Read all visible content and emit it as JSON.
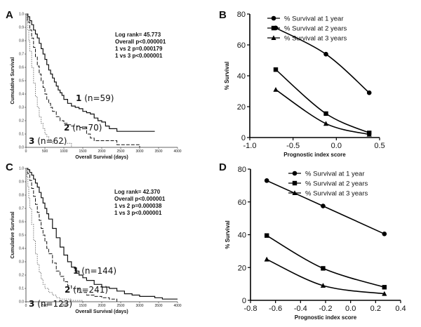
{
  "chart_data": [
    {
      "panel": "A",
      "type": "line",
      "xlabel": "Overall Survival (days)",
      "ylabel": "Cumulative Survival",
      "xlim": [
        0,
        4000
      ],
      "ylim": [
        0,
        1.0
      ],
      "xticks": [
        "0",
        "500",
        "1000",
        "1500",
        "2000",
        "2500",
        "3000",
        "3500",
        "4000"
      ],
      "yticks": [
        "0.0",
        "0.1",
        "0.2",
        "0.3",
        "0.4",
        "0.5",
        "0.6",
        "0.7",
        "0.8",
        "0.9",
        "1.0"
      ],
      "stats": [
        "Log rank= 45.773",
        "Overall p<0.000001",
        "1 vs 2 p=0.000179",
        "1 vs 3 p<0.000001"
      ],
      "group_labels": [
        {
          "num": "1",
          "n": "(n=59)"
        },
        {
          "num": "2",
          "n": "(n=70)"
        },
        {
          "num": "3",
          "n": "(n=62)"
        }
      ],
      "series": [
        {
          "x": [
            0,
            50,
            100,
            150,
            200,
            250,
            300,
            350,
            400,
            450,
            500,
            550,
            600,
            650,
            700,
            750,
            800,
            850,
            900,
            950,
            1000,
            1100,
            1200,
            1300,
            1400,
            1500,
            1600,
            1700,
            1800,
            1900,
            2000,
            2100,
            2200,
            2300,
            2400,
            2600,
            2800,
            3000,
            3200,
            3400
          ],
          "y": [
            1.0,
            0.98,
            0.95,
            0.92,
            0.88,
            0.85,
            0.82,
            0.78,
            0.74,
            0.7,
            0.66,
            0.62,
            0.58,
            0.55,
            0.52,
            0.49,
            0.46,
            0.43,
            0.41,
            0.39,
            0.36,
            0.33,
            0.31,
            0.3,
            0.29,
            0.27,
            0.26,
            0.25,
            0.22,
            0.2,
            0.19,
            0.16,
            0.14,
            0.14,
            0.12,
            0.12,
            0.12,
            0.12,
            0.12,
            0.12
          ]
        },
        {
          "x": [
            0,
            50,
            100,
            150,
            200,
            250,
            300,
            350,
            400,
            450,
            500,
            550,
            600,
            650,
            700,
            800,
            900,
            1000,
            1100,
            1200,
            1300,
            1400,
            1500,
            1600,
            1700,
            1800,
            2000,
            2200,
            2400,
            2600,
            2800,
            3000
          ],
          "y": [
            1.0,
            0.94,
            0.88,
            0.82,
            0.75,
            0.68,
            0.61,
            0.55,
            0.5,
            0.45,
            0.4,
            0.36,
            0.33,
            0.3,
            0.27,
            0.23,
            0.2,
            0.18,
            0.17,
            0.16,
            0.16,
            0.15,
            0.15,
            0.1,
            0.07,
            0.05,
            0.05,
            0.05,
            0.02,
            0.02,
            0.02,
            0.0
          ]
        },
        {
          "x": [
            0,
            25,
            50,
            75,
            100,
            150,
            200,
            250,
            300,
            350,
            400,
            450,
            500,
            550,
            600,
            650,
            700,
            800,
            900,
            1000,
            1200
          ],
          "y": [
            1.0,
            0.95,
            0.88,
            0.8,
            0.72,
            0.6,
            0.48,
            0.38,
            0.3,
            0.23,
            0.18,
            0.14,
            0.1,
            0.08,
            0.06,
            0.05,
            0.03,
            0.03,
            0.03,
            0.03,
            0.0
          ]
        }
      ]
    },
    {
      "panel": "B",
      "type": "line",
      "xlabel": "Prognostic index score",
      "ylabel": "% Survival",
      "xlim": [
        -1.0,
        0.5
      ],
      "ylim": [
        0,
        80
      ],
      "xticks": [
        "-1.0",
        "-0.5",
        "0.0",
        "0.5"
      ],
      "yticks": [
        "0",
        "20",
        "40",
        "60",
        "80"
      ],
      "legend_position": "top-right",
      "series": [
        {
          "name": "% Survival at 1 year",
          "marker": "circle",
          "x": [
            -0.7,
            -0.12,
            0.38
          ],
          "y": [
            71,
            54,
            29
          ]
        },
        {
          "name": "% Survival at 2 years",
          "marker": "square",
          "x": [
            -0.7,
            -0.12,
            0.38
          ],
          "y": [
            44,
            15.5,
            3
          ]
        },
        {
          "name": "% Survival at 3 years",
          "marker": "triangle",
          "x": [
            -0.7,
            -0.12,
            0.38
          ],
          "y": [
            31,
            9,
            2
          ]
        }
      ]
    },
    {
      "panel": "C",
      "type": "line",
      "xlabel": "Overall Survival (days)",
      "ylabel": "Cumulative Survival",
      "xlim": [
        0,
        4000
      ],
      "ylim": [
        0,
        1.0
      ],
      "xticks": [
        "0",
        "500",
        "1000",
        "1500",
        "2000",
        "2500",
        "3000",
        "3500",
        "4000"
      ],
      "yticks": [
        "0.0",
        "0.1",
        "0.2",
        "0.3",
        "0.4",
        "0.5",
        "0.6",
        "0.7",
        "0.8",
        "0.9",
        "1.0"
      ],
      "stats": [
        "Log rank= 42.370",
        "Overall p<0.000001",
        "1 vs 2 p=0.000038",
        "1 vs 3 p<0.000001"
      ],
      "group_labels": [
        {
          "num": "1",
          "n": "(n=144)"
        },
        {
          "num": "2",
          "n": "(n=241)"
        },
        {
          "num": "3",
          "n": "(n=123)"
        }
      ],
      "series": [
        {
          "x": [
            0,
            50,
            100,
            150,
            200,
            250,
            300,
            350,
            400,
            450,
            500,
            550,
            600,
            700,
            800,
            900,
            1000,
            1100,
            1200,
            1300,
            1400,
            1500,
            1600,
            1800,
            2000,
            2200,
            2400,
            2600,
            2800,
            3000,
            3200,
            3400,
            3600,
            3800,
            4000
          ],
          "y": [
            1.0,
            0.99,
            0.97,
            0.95,
            0.92,
            0.89,
            0.86,
            0.82,
            0.78,
            0.74,
            0.7,
            0.66,
            0.62,
            0.55,
            0.48,
            0.41,
            0.35,
            0.3,
            0.26,
            0.23,
            0.2,
            0.18,
            0.16,
            0.13,
            0.11,
            0.1,
            0.08,
            0.06,
            0.05,
            0.04,
            0.04,
            0.03,
            0.02,
            0.02,
            0.02
          ]
        },
        {
          "x": [
            0,
            50,
            100,
            150,
            200,
            250,
            300,
            350,
            400,
            450,
            500,
            550,
            600,
            700,
            800,
            900,
            1000,
            1100,
            1200,
            1400,
            1600,
            1800,
            2000,
            2200,
            2400
          ],
          "y": [
            1.0,
            0.96,
            0.91,
            0.85,
            0.79,
            0.73,
            0.67,
            0.61,
            0.55,
            0.5,
            0.45,
            0.4,
            0.36,
            0.29,
            0.23,
            0.19,
            0.15,
            0.12,
            0.1,
            0.07,
            0.05,
            0.04,
            0.03,
            0.02,
            0.0
          ]
        },
        {
          "x": [
            0,
            25,
            50,
            75,
            100,
            150,
            200,
            250,
            300,
            350,
            400,
            450,
            500,
            600,
            700,
            800,
            900,
            1000,
            1200,
            1500
          ],
          "y": [
            1.0,
            0.94,
            0.86,
            0.78,
            0.7,
            0.58,
            0.46,
            0.36,
            0.28,
            0.22,
            0.17,
            0.13,
            0.1,
            0.07,
            0.05,
            0.03,
            0.02,
            0.02,
            0.01,
            0.0
          ]
        }
      ]
    },
    {
      "panel": "D",
      "type": "line",
      "xlabel": "Prognostic index score",
      "ylabel": "% Survival",
      "xlim": [
        -0.8,
        0.4
      ],
      "ylim": [
        0,
        80
      ],
      "xticks": [
        "-0.8",
        "-0.6",
        "-0.4",
        "-0.2",
        "0.0",
        "0.2",
        "0.4"
      ],
      "yticks": [
        "0",
        "20",
        "40",
        "60",
        "80"
      ],
      "legend_position": "top-right",
      "series": [
        {
          "name": "% Survival at 1 year",
          "marker": "circle",
          "x": [
            -0.67,
            -0.22,
            0.27
          ],
          "y": [
            73,
            57.5,
            40.5
          ]
        },
        {
          "name": "% Survival at 2 years",
          "marker": "square",
          "x": [
            -0.67,
            -0.22,
            0.27
          ],
          "y": [
            39.5,
            19.5,
            8
          ]
        },
        {
          "name": "% Survival at 3 years",
          "marker": "triangle",
          "x": [
            -0.67,
            -0.22,
            0.27
          ],
          "y": [
            25,
            9,
            4
          ]
        }
      ]
    }
  ]
}
